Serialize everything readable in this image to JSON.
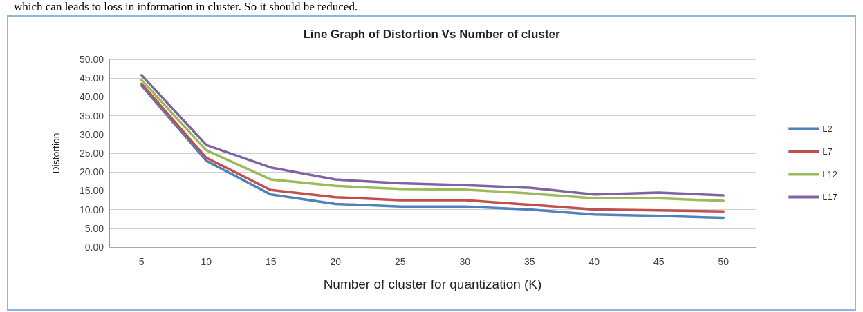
{
  "chart_data": {
    "type": "line",
    "title": "Line Graph of Distortion Vs Number of cluster",
    "xlabel": "Number of cluster for quantization (K)",
    "ylabel": "Distortion",
    "annotations": [
      "which can leads to loss in information in cluster. So it should be reduced."
    ],
    "categories": [
      "5",
      "10",
      "15",
      "20",
      "25",
      "30",
      "35",
      "40",
      "45",
      "50"
    ],
    "series": [
      {
        "name": "L2",
        "color": "#4f81bd",
        "values": [
          43,
          23,
          14,
          11.5,
          10.8,
          10.8,
          10,
          8.7,
          8.3,
          7.8
        ]
      },
      {
        "name": "L7",
        "color": "#c0504d",
        "values": [
          43.5,
          23.8,
          15.2,
          13.3,
          12.5,
          12.5,
          11.3,
          10,
          9.8,
          9.5
        ]
      },
      {
        "name": "L12",
        "color": "#9bbb59",
        "values": [
          44.5,
          25.8,
          18,
          16.3,
          15.5,
          15.3,
          14.3,
          13,
          13,
          12.3
        ]
      },
      {
        "name": "L17",
        "color": "#8064a2",
        "values": [
          45.8,
          27.2,
          21.2,
          18,
          17,
          16.5,
          15.8,
          14,
          14.5,
          13.8
        ]
      }
    ],
    "ylim": [
      0,
      50
    ],
    "yticks": [
      {
        "value": 0,
        "label": "0.00"
      },
      {
        "value": 5,
        "label": "5.00"
      },
      {
        "value": 10,
        "label": "10.00"
      },
      {
        "value": 15,
        "label": "15.00"
      },
      {
        "value": 20,
        "label": "20.00"
      },
      {
        "value": 25,
        "label": "25.00"
      },
      {
        "value": 30,
        "label": "30.00"
      },
      {
        "value": 35,
        "label": "35.00"
      },
      {
        "value": 40,
        "label": "40.00"
      },
      {
        "value": 45,
        "label": "45.00"
      },
      {
        "value": 50,
        "label": "50.00"
      }
    ],
    "grid": "y",
    "legend": "right",
    "marker": "none",
    "line_style": "solid"
  }
}
